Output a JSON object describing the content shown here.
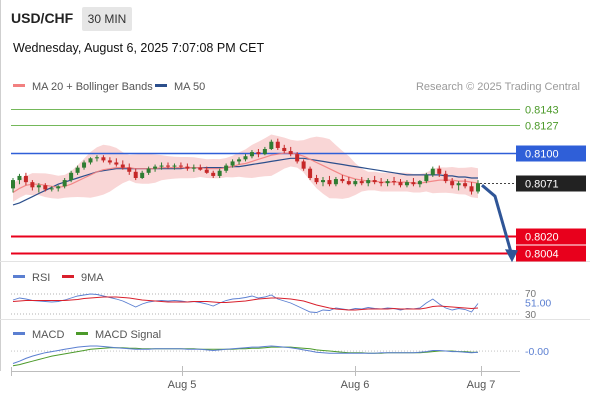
{
  "header": {
    "symbol": "USD/CHF",
    "timeframe": "30 MIN",
    "datetime": "Wednesday, August 6, 2025 7:07:08 PM CET"
  },
  "colors": {
    "bull": "#2e7d32",
    "bear": "#c62828",
    "ma20": "#f28080",
    "ma50": "#2c4f8c",
    "band": "#f7c8c8",
    "support": "#e8001c",
    "resistance": "#2f5fd8",
    "target": "#74b85a",
    "price": "#222222",
    "rsi": "#5b7fd1",
    "rsi_ma": "#d9202c",
    "macd": "#5b7fd1",
    "macd_signal": "#4c9a2a",
    "arrow": "#2f5597"
  },
  "chart_data": [
    {
      "type": "candlestick",
      "title": "",
      "legend": [
        {
          "name": "MA 20 + Bollinger Bands",
          "color": "#f28080"
        },
        {
          "name": "MA 50",
          "color": "#2c4f8c"
        }
      ],
      "credit": "Research © 2025 Trading Central",
      "x_ticks": [
        "Aug 5",
        "Aug 6",
        "Aug 7"
      ],
      "y_range": [
        0.7993,
        0.8159
      ],
      "ohlc_approx": [
        [
          0.8066,
          0.8076,
          0.8062,
          0.8074
        ],
        [
          0.8074,
          0.808,
          0.807,
          0.8078
        ],
        [
          0.8078,
          0.8081,
          0.8069,
          0.8072
        ],
        [
          0.8072,
          0.8074,
          0.8064,
          0.8067
        ],
        [
          0.8067,
          0.8071,
          0.8062,
          0.8069
        ],
        [
          0.8069,
          0.8071,
          0.8063,
          0.8065
        ],
        [
          0.8065,
          0.8068,
          0.8063,
          0.8066
        ],
        [
          0.8066,
          0.8069,
          0.8063,
          0.8068
        ],
        [
          0.8068,
          0.8076,
          0.8066,
          0.8074
        ],
        [
          0.8074,
          0.8083,
          0.8072,
          0.8081
        ],
        [
          0.8081,
          0.8088,
          0.8079,
          0.8086
        ],
        [
          0.8086,
          0.8093,
          0.8084,
          0.8091
        ],
        [
          0.8091,
          0.8096,
          0.8089,
          0.8095
        ],
        [
          0.8095,
          0.8098,
          0.8092,
          0.8096
        ],
        [
          0.8096,
          0.8098,
          0.8091,
          0.8093
        ],
        [
          0.8093,
          0.8096,
          0.8089,
          0.8091
        ],
        [
          0.8091,
          0.8095,
          0.8087,
          0.8089
        ],
        [
          0.8089,
          0.8093,
          0.8084,
          0.8086
        ],
        [
          0.8086,
          0.809,
          0.8079,
          0.8082
        ],
        [
          0.8082,
          0.8085,
          0.8074,
          0.8076
        ],
        [
          0.8076,
          0.8083,
          0.8075,
          0.8081
        ],
        [
          0.8081,
          0.8087,
          0.8079,
          0.8085
        ],
        [
          0.8085,
          0.8089,
          0.8082,
          0.8087
        ],
        [
          0.8087,
          0.8091,
          0.8084,
          0.8088
        ],
        [
          0.8088,
          0.8091,
          0.8085,
          0.8087
        ],
        [
          0.8087,
          0.809,
          0.8084,
          0.8088
        ],
        [
          0.8088,
          0.8091,
          0.8085,
          0.8087
        ],
        [
          0.8087,
          0.809,
          0.8083,
          0.8085
        ],
        [
          0.8085,
          0.8089,
          0.8082,
          0.8086
        ],
        [
          0.8086,
          0.8089,
          0.8083,
          0.8084
        ],
        [
          0.8084,
          0.8087,
          0.808,
          0.8081
        ],
        [
          0.8081,
          0.8083,
          0.8076,
          0.8078
        ],
        [
          0.8078,
          0.8085,
          0.8076,
          0.8083
        ],
        [
          0.8083,
          0.809,
          0.8081,
          0.8088
        ],
        [
          0.8088,
          0.8094,
          0.8086,
          0.8092
        ],
        [
          0.8092,
          0.8096,
          0.8089,
          0.8094
        ],
        [
          0.8094,
          0.8099,
          0.8092,
          0.8097
        ],
        [
          0.8097,
          0.8103,
          0.8095,
          0.8101
        ],
        [
          0.8101,
          0.8104,
          0.8096,
          0.8099
        ],
        [
          0.8099,
          0.8106,
          0.8098,
          0.8104
        ],
        [
          0.8104,
          0.8113,
          0.8103,
          0.8111
        ],
        [
          0.8111,
          0.8114,
          0.8103,
          0.8105
        ],
        [
          0.8105,
          0.8108,
          0.81,
          0.8102
        ],
        [
          0.8102,
          0.8106,
          0.8097,
          0.8099
        ],
        [
          0.8099,
          0.8101,
          0.809,
          0.8092
        ],
        [
          0.8092,
          0.8094,
          0.8083,
          0.8085
        ],
        [
          0.8085,
          0.8087,
          0.8074,
          0.8076
        ],
        [
          0.8076,
          0.8079,
          0.807,
          0.8072
        ],
        [
          0.8072,
          0.8077,
          0.8068,
          0.8074
        ],
        [
          0.8074,
          0.8078,
          0.8068,
          0.807
        ],
        [
          0.807,
          0.8077,
          0.8068,
          0.8075
        ],
        [
          0.8075,
          0.8079,
          0.8071,
          0.8073
        ],
        [
          0.8073,
          0.8077,
          0.8069,
          0.807
        ],
        [
          0.807,
          0.8075,
          0.8068,
          0.8073
        ],
        [
          0.8073,
          0.8077,
          0.8069,
          0.8071
        ],
        [
          0.8071,
          0.8076,
          0.8068,
          0.8074
        ],
        [
          0.8074,
          0.8078,
          0.807,
          0.8072
        ],
        [
          0.8072,
          0.8076,
          0.8068,
          0.8071
        ],
        [
          0.8071,
          0.8075,
          0.8068,
          0.8073
        ],
        [
          0.8073,
          0.8077,
          0.8069,
          0.8072
        ],
        [
          0.8072,
          0.8075,
          0.8067,
          0.8069
        ],
        [
          0.8069,
          0.8074,
          0.8067,
          0.8072
        ],
        [
          0.8072,
          0.8076,
          0.8068,
          0.807
        ],
        [
          0.807,
          0.8074,
          0.8067,
          0.8073
        ],
        [
          0.8073,
          0.8081,
          0.8071,
          0.8079
        ],
        [
          0.8079,
          0.8087,
          0.8077,
          0.8085
        ],
        [
          0.8085,
          0.8088,
          0.8077,
          0.808
        ],
        [
          0.808,
          0.8083,
          0.8071,
          0.8073
        ],
        [
          0.8073,
          0.8076,
          0.8066,
          0.8069
        ],
        [
          0.8069,
          0.8073,
          0.8064,
          0.8071
        ],
        [
          0.8071,
          0.8075,
          0.8066,
          0.8068
        ],
        [
          0.8068,
          0.8072,
          0.806,
          0.8063
        ],
        [
          0.8063,
          0.8074,
          0.8061,
          0.8071
        ]
      ],
      "series": [
        {
          "name": "MA 20 + Bollinger Bands",
          "values": [
            0.8062,
            0.8066,
            0.8069,
            0.807,
            0.807,
            0.8069,
            0.8068,
            0.8067,
            0.8068,
            0.807,
            0.8073,
            0.8076,
            0.8079,
            0.8082,
            0.8084,
            0.8085,
            0.8086,
            0.8086,
            0.8086,
            0.8085,
            0.8085,
            0.8085,
            0.8085,
            0.8086,
            0.8086,
            0.8086,
            0.8086,
            0.8086,
            0.8086,
            0.8086,
            0.8085,
            0.8085,
            0.8085,
            0.8086,
            0.8087,
            0.8089,
            0.809,
            0.8092,
            0.8094,
            0.8096,
            0.8098,
            0.8099,
            0.81,
            0.81,
            0.8099,
            0.8097,
            0.8094,
            0.8091,
            0.8088,
            0.8085,
            0.8082,
            0.8079,
            0.8077,
            0.8075,
            0.8074,
            0.8073,
            0.8073,
            0.8072,
            0.8072,
            0.8072,
            0.8072,
            0.8072,
            0.8071,
            0.8071,
            0.8072,
            0.8073,
            0.8074,
            0.8074,
            0.8074,
            0.8073,
            0.8073,
            0.8072,
            0.8071
          ]
        },
        {
          "name": "MA 50",
          "values": [
            0.805,
            0.8052,
            0.8055,
            0.8058,
            0.8061,
            0.8064,
            0.8067,
            0.807,
            0.8072,
            0.8074,
            0.8076,
            0.8078,
            0.808,
            0.8082,
            0.8083,
            0.8084,
            0.8085,
            0.8085,
            0.8085,
            0.8085,
            0.8085,
            0.8085,
            0.8085,
            0.8085,
            0.8085,
            0.8085,
            0.8085,
            0.8086,
            0.8086,
            0.8086,
            0.8086,
            0.8086,
            0.8086,
            0.8086,
            0.8087,
            0.8087,
            0.8088,
            0.8089,
            0.809,
            0.8091,
            0.8092,
            0.8093,
            0.8094,
            0.8095,
            0.8095,
            0.8095,
            0.8094,
            0.8093,
            0.8092,
            0.8091,
            0.809,
            0.8089,
            0.8088,
            0.8087,
            0.8086,
            0.8085,
            0.8084,
            0.8083,
            0.8082,
            0.8081,
            0.808,
            0.8079,
            0.8079,
            0.8079,
            0.8079,
            0.8079,
            0.8079,
            0.8078,
            0.8078,
            0.8077,
            0.8077,
            0.8076,
            0.8076
          ]
        }
      ],
      "levels": [
        {
          "value": 0.8143,
          "label": "0.8143",
          "kind": "target"
        },
        {
          "value": 0.8127,
          "label": "0.8127",
          "kind": "target"
        },
        {
          "value": 0.81,
          "label": "0.8100",
          "kind": "resistance"
        },
        {
          "value": 0.8071,
          "label": "0.8071",
          "kind": "price"
        },
        {
          "value": 0.802,
          "label": "0.8020",
          "kind": "support"
        },
        {
          "value": 0.8004,
          "label": "0.8004",
          "kind": "support"
        }
      ],
      "projection": {
        "from": 0.8071,
        "to": 0.8014,
        "direction": "down"
      }
    },
    {
      "type": "line",
      "legend": [
        {
          "name": "RSI",
          "color": "#5b7fd1"
        },
        {
          "name": "9MA",
          "color": "#d9202c"
        }
      ],
      "y_ticks": [
        "70",
        "51.00",
        "30"
      ],
      "ylim": [
        20,
        80
      ],
      "series": [
        {
          "name": "RSI",
          "values": [
            58,
            62,
            60,
            57,
            56,
            55,
            54,
            55,
            58,
            62,
            66,
            68,
            70,
            69,
            66,
            63,
            60,
            56,
            50,
            44,
            50,
            54,
            56,
            57,
            56,
            57,
            56,
            54,
            55,
            53,
            50,
            46,
            52,
            57,
            60,
            61,
            63,
            66,
            62,
            64,
            68,
            60,
            56,
            52,
            46,
            40,
            34,
            33,
            38,
            37,
            42,
            40,
            38,
            41,
            40,
            43,
            41,
            40,
            42,
            41,
            38,
            41,
            40,
            42,
            52,
            60,
            50,
            42,
            38,
            41,
            39,
            34,
            51
          ]
        },
        {
          "name": "9MA",
          "values": [
            55,
            56,
            57,
            57,
            57,
            57,
            57,
            57,
            57,
            58,
            59,
            61,
            62,
            63,
            64,
            64,
            64,
            63,
            62,
            60,
            58,
            57,
            56,
            55,
            54,
            54,
            54,
            54,
            55,
            55,
            55,
            54,
            53,
            53,
            54,
            55,
            56,
            58,
            60,
            61,
            62,
            62,
            61,
            60,
            58,
            56,
            52,
            48,
            45,
            42,
            40,
            39,
            38,
            38,
            39,
            40,
            40,
            40,
            40,
            41,
            40,
            40,
            40,
            40,
            42,
            45,
            46,
            45,
            44,
            43,
            42,
            41,
            42
          ]
        }
      ]
    },
    {
      "type": "line",
      "legend": [
        {
          "name": "MACD",
          "color": "#5b7fd1"
        },
        {
          "name": "MACD Signal",
          "color": "#4c9a2a"
        }
      ],
      "y_ticks": [
        "-0.00"
      ],
      "ylim": [
        -0.003,
        0.0016
      ],
      "series": [
        {
          "name": "MACD",
          "values": [
            -0.0022,
            -0.0018,
            -0.0013,
            -0.0009,
            -0.0006,
            -0.0003,
            -0.0001,
            0.0001,
            0.0003,
            0.0005,
            0.0007,
            0.0008,
            0.0009,
            0.0009,
            0.0008,
            0.0007,
            0.0006,
            0.0005,
            0.0004,
            0.0003,
            0.0003,
            0.0003,
            0.0004,
            0.0004,
            0.0004,
            0.0004,
            0.0004,
            0.0003,
            0.0003,
            0.0003,
            0.0002,
            0.0001,
            0.0002,
            0.0003,
            0.0004,
            0.0005,
            0.0006,
            0.0007,
            0.0007,
            0.0008,
            0.0009,
            0.0008,
            0.0007,
            0.0006,
            0.0004,
            0.0002,
            0.0,
            -0.0002,
            -0.0003,
            -0.0004,
            -0.0004,
            -0.0004,
            -0.0004,
            -0.0004,
            -0.0004,
            -0.0004,
            -0.0004,
            -0.0003,
            -0.0003,
            -0.0003,
            -0.0003,
            -0.0003,
            -0.0003,
            -0.0002,
            -0.0001,
            0.0001,
            0.0001,
            0.0,
            -0.0001,
            -0.0001,
            -0.0002,
            -0.0003,
            -0.0002
          ]
        },
        {
          "name": "MACD Signal",
          "values": [
            -0.0026,
            -0.0024,
            -0.0021,
            -0.0018,
            -0.0015,
            -0.0012,
            -0.0009,
            -0.0007,
            -0.0005,
            -0.0003,
            -0.0001,
            0.0001,
            0.0003,
            0.0004,
            0.0005,
            0.0006,
            0.0006,
            0.0006,
            0.0005,
            0.0005,
            0.0004,
            0.0004,
            0.0004,
            0.0004,
            0.0004,
            0.0004,
            0.0004,
            0.0004,
            0.0004,
            0.0003,
            0.0003,
            0.0003,
            0.0003,
            0.0003,
            0.0003,
            0.0004,
            0.0004,
            0.0005,
            0.0005,
            0.0006,
            0.0007,
            0.0007,
            0.0007,
            0.0007,
            0.0006,
            0.0005,
            0.0004,
            0.0002,
            0.0001,
            0.0,
            -0.0001,
            -0.0002,
            -0.0003,
            -0.0003,
            -0.0003,
            -0.0004,
            -0.0004,
            -0.0004,
            -0.0003,
            -0.0003,
            -0.0003,
            -0.0003,
            -0.0003,
            -0.0003,
            -0.0002,
            -0.0001,
            0.0,
            0.0,
            0.0,
            -0.0001,
            -0.0001,
            -0.0002,
            -0.0002
          ]
        }
      ]
    }
  ]
}
